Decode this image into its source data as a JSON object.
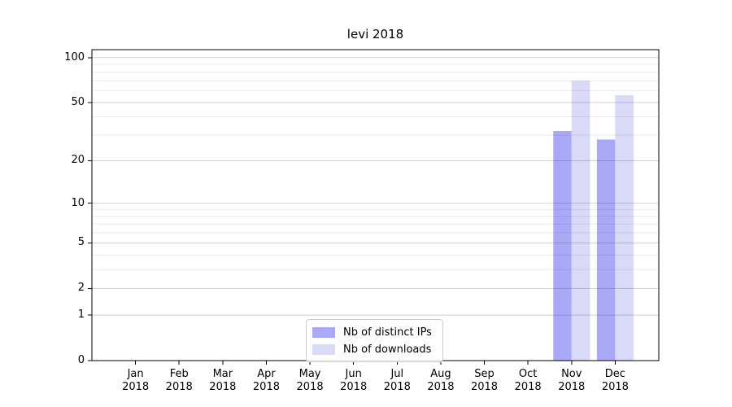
{
  "chart_data": {
    "type": "bar",
    "title": "levi 2018",
    "categories": [
      "Jan\n2018",
      "Feb\n2018",
      "Mar\n2018",
      "Apr\n2018",
      "May\n2018",
      "Jun\n2018",
      "Jul\n2018",
      "Aug\n2018",
      "Sep\n2018",
      "Oct\n2018",
      "Nov\n2018",
      "Dec\n2018"
    ],
    "series": [
      {
        "name": "Nb of distinct IPs",
        "color": "#a9a9f8",
        "values": [
          0,
          0,
          0,
          0,
          0,
          0,
          0,
          0,
          0,
          0,
          32,
          28
        ]
      },
      {
        "name": "Nb of downloads",
        "color": "#d9d9f8",
        "values": [
          0,
          0,
          0,
          0,
          0,
          0,
          0,
          0,
          0,
          0,
          70,
          56
        ]
      }
    ],
    "xlabel": "",
    "ylabel": "",
    "yscale": "log1p",
    "ylim": [
      0,
      113
    ],
    "yticks": [
      0,
      1,
      2,
      5,
      10,
      20,
      50,
      100
    ],
    "y_minor_gridlines": [
      3,
      4,
      6,
      7,
      8,
      9,
      30,
      40,
      60,
      70,
      80,
      90
    ],
    "grid": true,
    "legend_position": "lower center"
  },
  "style_colors": {
    "major_grid": "rgba(0,0,0,0.18)",
    "minor_grid": "rgba(0,0,0,0.08)",
    "spine": "#000000"
  }
}
